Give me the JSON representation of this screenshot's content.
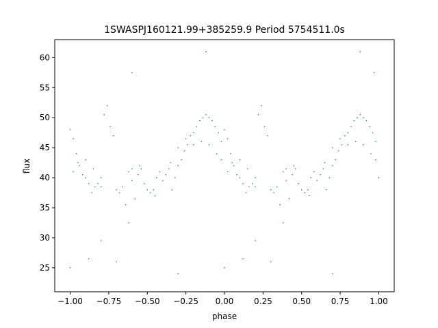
{
  "chart_data": {
    "type": "scatter",
    "title": "1SWASPJ160121.99+385259.9 Period 5754511.0s",
    "xlabel": "phase",
    "ylabel": "flux",
    "xlim": [
      -1.1,
      1.1
    ],
    "ylim": [
      21.0,
      63.0
    ],
    "x_ticks": [
      -1.0,
      -0.75,
      -0.5,
      -0.25,
      0.0,
      0.25,
      0.5,
      0.75,
      1.0
    ],
    "x_tick_labels": [
      "−1.00",
      "−0.75",
      "−0.50",
      "−0.25",
      "0.00",
      "0.25",
      "0.50",
      "0.75",
      "1.00"
    ],
    "y_ticks": [
      25,
      30,
      35,
      40,
      45,
      50,
      55,
      60
    ],
    "y_tick_labels": [
      "25",
      "30",
      "35",
      "40",
      "45",
      "50",
      "55",
      "60"
    ],
    "grid": false,
    "legend": "none",
    "point_color": "#1f77b4",
    "phase_folded": true,
    "series": [
      {
        "points": [
          [
            -1.0,
            48.0
          ],
          [
            -0.98,
            46.5
          ],
          [
            -0.96,
            44.0
          ],
          [
            -0.94,
            42.0
          ],
          [
            -0.92,
            40.5
          ],
          [
            -0.9,
            40.0
          ],
          [
            -0.88,
            39.0
          ],
          [
            -0.86,
            37.5
          ],
          [
            -0.84,
            38.5
          ],
          [
            -0.82,
            39.0
          ],
          [
            -0.8,
            38.5
          ],
          [
            -0.78,
            50.5
          ],
          [
            -0.76,
            52.0
          ],
          [
            -0.74,
            48.5
          ],
          [
            -0.72,
            47.0
          ],
          [
            -0.7,
            38.0
          ],
          [
            -0.68,
            37.5
          ],
          [
            -0.66,
            38.5
          ],
          [
            -0.64,
            35.5
          ],
          [
            -0.62,
            41.0
          ],
          [
            -0.6,
            39.5
          ],
          [
            -0.58,
            36.5
          ],
          [
            -0.56,
            40.5
          ],
          [
            -0.54,
            41.5
          ],
          [
            -0.52,
            39.0
          ],
          [
            -0.5,
            38.0
          ],
          [
            -0.48,
            37.5
          ],
          [
            -0.46,
            38.0
          ],
          [
            -0.44,
            40.0
          ],
          [
            -0.42,
            41.0
          ],
          [
            -0.4,
            39.5
          ],
          [
            -0.38,
            40.5
          ],
          [
            -0.36,
            41.5
          ],
          [
            -0.34,
            38.0
          ],
          [
            -0.32,
            40.0
          ],
          [
            -0.3,
            42.0
          ],
          [
            -0.28,
            43.0
          ],
          [
            -0.26,
            44.5
          ],
          [
            -0.24,
            45.5
          ],
          [
            -0.22,
            47.0
          ],
          [
            -0.2,
            47.5
          ],
          [
            -0.18,
            48.5
          ],
          [
            -0.16,
            49.5
          ],
          [
            -0.14,
            50.0
          ],
          [
            -0.12,
            50.5
          ],
          [
            -0.1,
            50.0
          ],
          [
            -0.08,
            49.5
          ],
          [
            -0.06,
            48.5
          ],
          [
            -0.04,
            47.5
          ],
          [
            -0.02,
            46.0
          ],
          [
            0.0,
            48.0
          ],
          [
            0.02,
            46.5
          ],
          [
            0.04,
            44.0
          ],
          [
            0.06,
            42.0
          ],
          [
            0.08,
            40.5
          ],
          [
            0.1,
            40.0
          ],
          [
            0.12,
            39.0
          ],
          [
            0.14,
            37.5
          ],
          [
            0.16,
            38.5
          ],
          [
            0.18,
            39.0
          ],
          [
            0.2,
            38.5
          ],
          [
            0.22,
            50.5
          ],
          [
            0.24,
            52.0
          ],
          [
            0.26,
            48.5
          ],
          [
            0.28,
            47.0
          ],
          [
            0.3,
            38.0
          ],
          [
            0.32,
            37.5
          ],
          [
            0.34,
            38.5
          ],
          [
            0.36,
            35.5
          ],
          [
            0.38,
            41.0
          ],
          [
            0.4,
            39.5
          ],
          [
            0.42,
            36.5
          ],
          [
            0.44,
            40.5
          ],
          [
            0.46,
            41.5
          ],
          [
            0.48,
            39.0
          ],
          [
            0.5,
            38.0
          ],
          [
            0.52,
            37.5
          ],
          [
            0.54,
            38.0
          ],
          [
            0.56,
            40.0
          ],
          [
            0.58,
            41.0
          ],
          [
            0.6,
            39.5
          ],
          [
            0.62,
            40.5
          ],
          [
            0.64,
            41.5
          ],
          [
            0.66,
            38.0
          ],
          [
            0.68,
            40.0
          ],
          [
            0.7,
            42.0
          ],
          [
            0.72,
            43.0
          ],
          [
            0.74,
            44.5
          ],
          [
            0.76,
            45.5
          ],
          [
            0.78,
            47.0
          ],
          [
            0.8,
            47.5
          ],
          [
            0.82,
            48.5
          ],
          [
            0.84,
            49.5
          ],
          [
            0.86,
            50.0
          ],
          [
            0.88,
            50.5
          ],
          [
            0.9,
            50.0
          ],
          [
            0.92,
            49.5
          ],
          [
            0.94,
            48.5
          ],
          [
            0.96,
            47.5
          ],
          [
            0.98,
            46.0
          ],
          [
            1.0,
            40.0
          ],
          [
            -0.98,
            41.0
          ],
          [
            -0.95,
            42.5
          ],
          [
            -0.9,
            43.0
          ],
          [
            -0.85,
            41.5
          ],
          [
            -0.8,
            40.0
          ],
          [
            -0.6,
            41.5
          ],
          [
            -0.55,
            42.0
          ],
          [
            -0.45,
            37.0
          ],
          [
            -0.35,
            42.5
          ],
          [
            -0.3,
            45.0
          ],
          [
            -0.25,
            46.5
          ],
          [
            -0.2,
            45.5
          ],
          [
            -0.15,
            46.0
          ],
          [
            -0.1,
            45.5
          ],
          [
            -0.05,
            44.0
          ],
          [
            -0.02,
            43.0
          ],
          [
            0.02,
            41.0
          ],
          [
            0.05,
            42.5
          ],
          [
            0.1,
            43.0
          ],
          [
            0.15,
            41.5
          ],
          [
            0.2,
            40.0
          ],
          [
            0.4,
            41.5
          ],
          [
            0.45,
            42.0
          ],
          [
            0.55,
            37.0
          ],
          [
            0.65,
            42.5
          ],
          [
            0.7,
            45.0
          ],
          [
            0.75,
            46.5
          ],
          [
            0.8,
            45.5
          ],
          [
            0.85,
            46.0
          ],
          [
            0.9,
            45.5
          ],
          [
            0.95,
            44.0
          ],
          [
            0.98,
            43.0
          ],
          [
            -0.88,
            26.5
          ],
          [
            -0.7,
            26.0
          ],
          [
            -0.3,
            24.0
          ],
          [
            -0.12,
            61.0
          ],
          [
            0.12,
            26.5
          ],
          [
            0.3,
            26.0
          ],
          [
            0.7,
            24.0
          ],
          [
            0.88,
            61.0
          ],
          [
            -0.62,
            32.5
          ],
          [
            0.38,
            32.5
          ],
          [
            -0.6,
            57.5
          ],
          [
            0.97,
            57.5
          ],
          [
            -1.0,
            25.0
          ],
          [
            0.0,
            25.0
          ],
          [
            -0.8,
            29.5
          ],
          [
            0.2,
            29.5
          ]
        ]
      }
    ]
  }
}
